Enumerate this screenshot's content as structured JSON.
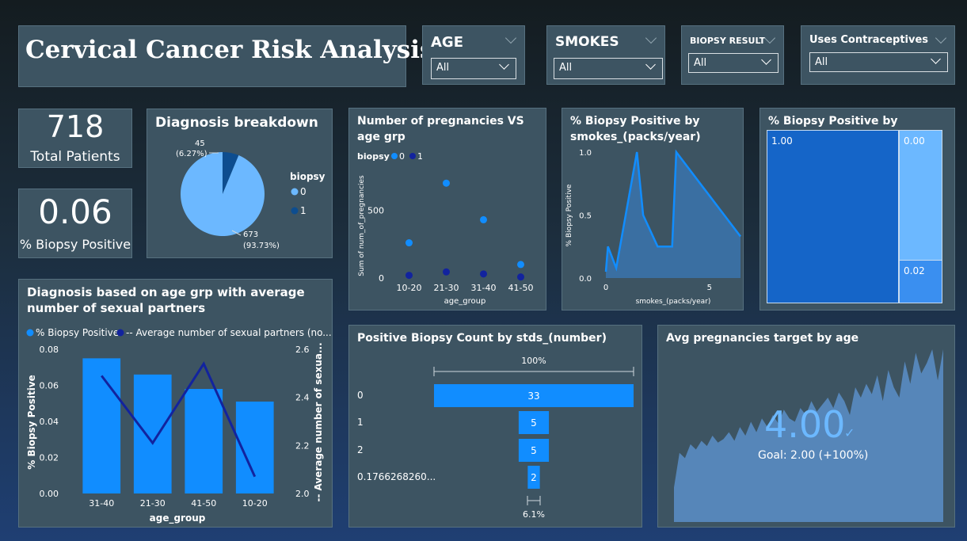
{
  "title": "Cervical Cancer Risk Analysis",
  "filters": [
    {
      "label": "AGE",
      "value": "All"
    },
    {
      "label": "SMOKES",
      "value": "All"
    },
    {
      "label": "BIOPSY RESULT",
      "value": "All"
    },
    {
      "label": "Uses Contraceptives",
      "value": "All"
    }
  ],
  "kpis": {
    "total_patients": {
      "value": "718",
      "label": "Total Patients"
    },
    "biopsy_positive": {
      "value": "0.06",
      "label": "% Biopsy Positive"
    }
  },
  "colors": {
    "light_blue": "#6cb8ff",
    "dark_blue": "#0d4d8f",
    "bar_blue": "#118dff",
    "navy": "#12239e"
  },
  "chart_data": [
    {
      "id": "diagnosis",
      "type": "pie",
      "title": "Diagnosis breakdown",
      "legend_title": "biopsy",
      "legend": [
        "0",
        "1"
      ],
      "slices": [
        {
          "name": "0",
          "value": 673,
          "label": "673",
          "pct_label": "(93.73%)"
        },
        {
          "name": "1",
          "value": 45,
          "label": "45",
          "pct_label": "(6.27%)"
        }
      ]
    },
    {
      "id": "pregnancies",
      "type": "scatter",
      "title": "Number of pregnancies VS age grp",
      "legend_title": "biopsy",
      "legend": [
        "0",
        "1"
      ],
      "categories": [
        "10-20",
        "21-30",
        "31-40",
        "41-50"
      ],
      "series": [
        {
          "name": "0",
          "values": [
            260,
            700,
            430,
            100
          ]
        },
        {
          "name": "1",
          "values": [
            20,
            45,
            30,
            8
          ]
        }
      ],
      "ylabel": "Sum of num_of_pregnancies",
      "xlabel": "age_group",
      "yticks": [
        "0",
        "500"
      ],
      "ylim": [
        0,
        900
      ]
    },
    {
      "id": "smokes",
      "type": "area",
      "title": "% Biopsy Positive by smokes_(packs/year)",
      "x": [
        0,
        0.1,
        0.5,
        1.5,
        1.8,
        2.5,
        3.2,
        3.4,
        6.5
      ],
      "y": [
        0.05,
        0.25,
        0.08,
        1.0,
        0.5,
        0.25,
        0.25,
        1.0,
        0.33
      ],
      "xticks": [
        "0",
        "5"
      ],
      "yticks": [
        "0.0",
        "0.5",
        "1.0"
      ],
      "xlabel": "smokes_(packs/year)",
      "ylabel": "% Biopsy Positive",
      "xlim": [
        0,
        6.5
      ],
      "ylim": [
        0,
        1.0
      ]
    },
    {
      "id": "stds_hiv",
      "type": "treemap",
      "title": "% Biopsy Positive by stds_hiv",
      "nodes": [
        {
          "label": "1.00",
          "value": 1.0
        },
        {
          "label": "0.00",
          "value": 0.0
        },
        {
          "label": "0.02",
          "value": 0.02
        }
      ]
    },
    {
      "id": "age_partners",
      "type": "bar",
      "title": "Diagnosis based on age grp with average number of sexual partners",
      "legend": [
        "% Biopsy Positive",
        "Average number of sexual partners (no..."
      ],
      "categories": [
        "31-40",
        "21-30",
        "41-50",
        "10-20"
      ],
      "series": [
        {
          "name": "% Biopsy Positive",
          "values": [
            0.075,
            0.066,
            0.058,
            0.051
          ]
        },
        {
          "name": "Average number of sexual partners (no...",
          "values": [
            2.49,
            2.21,
            2.54,
            2.07
          ]
        }
      ],
      "ylabel": "% Biopsy Positive",
      "y2label": "Average number of sexua...",
      "xlabel": "age_group",
      "yticks": [
        "0.00",
        "0.02",
        "0.04",
        "0.06",
        "0.08"
      ],
      "y2ticks": [
        "2.0",
        "2.2",
        "2.4",
        "2.6"
      ],
      "ylim": [
        0,
        0.08
      ],
      "y2lim": [
        2.0,
        2.6
      ]
    },
    {
      "id": "stds_number",
      "type": "funnel",
      "title": "Positive Biopsy Count by stds_(number)",
      "top_label": "100%",
      "bottom_label": "6.1%",
      "categories": [
        "0",
        "1",
        "2",
        "0.1766268260..."
      ],
      "values": [
        33,
        5,
        5,
        2
      ]
    },
    {
      "id": "preg_target",
      "type": "area",
      "title": "Avg pregnancies target by age",
      "value": "4.00",
      "goal": "Goal: 2.00 (+100%)",
      "values": [
        0.2,
        0.4,
        0.37,
        0.45,
        0.42,
        0.47,
        0.44,
        0.5,
        0.46,
        0.48,
        0.52,
        0.47,
        0.55,
        0.5,
        0.58,
        0.52,
        0.6,
        0.55,
        0.62,
        0.57,
        0.65,
        0.6,
        0.58,
        0.66,
        0.62,
        0.7,
        0.64,
        0.68,
        0.72,
        0.66,
        0.75,
        0.7,
        0.62,
        0.78,
        0.72,
        0.8,
        0.74,
        0.85,
        0.7,
        0.88,
        0.78,
        0.72,
        0.93,
        0.8,
        0.98,
        0.86,
        0.92,
        1.0,
        0.82,
        1.0
      ]
    }
  ]
}
